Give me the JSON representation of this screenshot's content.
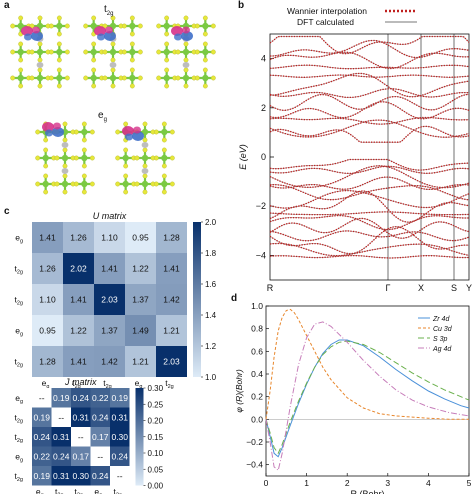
{
  "panels": {
    "a": {
      "letter": "a",
      "t2g_label": "t",
      "t2g_sub": "2g",
      "eg_label": "e",
      "eg_sub": "g"
    },
    "b": {
      "letter": "b"
    },
    "c": {
      "letter": "c"
    },
    "d": {
      "letter": "d"
    }
  },
  "colors": {
    "atom_green": "#7ac943",
    "atom_yellow": "#e6e83a",
    "atom_gray": "#bdbdbd",
    "orbital_magenta": "#d6318a",
    "orbital_blue": "#3f6fc9",
    "band_red": "#c0201f",
    "dft_gray": "#777777",
    "heat_dark": "#08306b",
    "heat_light": "#deebf7"
  },
  "chart_data": [
    {
      "type": "line",
      "panel": "b",
      "ylabel": "E (eV)",
      "ylim": [
        -5,
        5
      ],
      "yticks": [
        -4,
        -2,
        0,
        2,
        4
      ],
      "xticks": [
        "R",
        "Γ",
        "X",
        "S",
        "Y"
      ],
      "legend": [
        "Wannier interpolation",
        "DFT calculated"
      ],
      "legend_placement": "top-right",
      "band_groups": [
        {
          "name": "",
          "range": [
            -4.2,
            -0.1
          ]
        },
        {
          "name": "",
          "range": [
            0.6,
            4.9
          ]
        }
      ]
    },
    {
      "type": "heatmap",
      "panel": "c",
      "title": "U matrix",
      "row_labels": [
        "e",
        "t",
        "t",
        "e",
        "t"
      ],
      "row_subs": [
        "g",
        "2g",
        "2g",
        "g",
        "2g"
      ],
      "col_labels": [
        "e",
        "t",
        "t",
        "e",
        "t"
      ],
      "col_subs": [
        "g",
        "2g",
        "2g",
        "g",
        "2g"
      ],
      "values": [
        [
          "1.41",
          "1.26",
          "1.10",
          "0.95",
          "1.28"
        ],
        [
          "1.26",
          "2.02",
          "1.41",
          "1.22",
          "1.41"
        ],
        [
          "1.10",
          "1.41",
          "2.03",
          "1.37",
          "1.42"
        ],
        [
          "0.95",
          "1.22",
          "1.37",
          "1.49",
          "1.21"
        ],
        [
          "1.28",
          "1.41",
          "1.42",
          "1.21",
          "2.03"
        ]
      ],
      "colorbar": {
        "min": 1.0,
        "max": 2.0,
        "ticks": [
          "1.0",
          "1.2",
          "1.4",
          "1.6",
          "1.8",
          "2.0"
        ]
      }
    },
    {
      "type": "heatmap",
      "panel": "c",
      "title": "J matrix",
      "row_labels": [
        "e",
        "t",
        "t",
        "e",
        "t"
      ],
      "row_subs": [
        "g",
        "2g",
        "2g",
        "g",
        "2g"
      ],
      "col_labels": [
        "e",
        "t",
        "t",
        "e",
        "t"
      ],
      "col_subs": [
        "g",
        "2g",
        "2g",
        "g",
        "2g"
      ],
      "values": [
        [
          "--",
          "0.19",
          "0.24",
          "0.22",
          "0.19"
        ],
        [
          "0.19",
          "--",
          "0.31",
          "0.24",
          "0.31"
        ],
        [
          "0.24",
          "0.31",
          "--",
          "0.17",
          "0.30"
        ],
        [
          "0.22",
          "0.24",
          "0.17",
          "--",
          "0.24"
        ],
        [
          "0.19",
          "0.31",
          "0.30",
          "0.24",
          "--"
        ]
      ],
      "colorbar": {
        "min": 0.0,
        "max": 0.3,
        "ticks": [
          "0.00",
          "0.05",
          "0.10",
          "0.15",
          "0.20",
          "0.25",
          "0.30"
        ]
      }
    },
    {
      "type": "line",
      "panel": "d",
      "xlabel": "R (Bohr)",
      "ylabel": "φ (R)(Bohr)",
      "xlim": [
        0,
        5
      ],
      "ylim": [
        -0.5,
        1.0
      ],
      "xticks": [
        0,
        1,
        2,
        3,
        4,
        5
      ],
      "yticks": [
        -0.4,
        -0.2,
        0.0,
        0.2,
        0.4,
        0.6,
        0.8,
        1.0
      ],
      "legend_placement": "top-right",
      "series": [
        {
          "name": "Zr 4d",
          "color": "#4a90d9",
          "dash": "",
          "x": [
            0,
            0.1,
            0.2,
            0.3,
            0.4,
            0.6,
            0.8,
            1.0,
            1.2,
            1.4,
            1.6,
            1.8,
            2.0,
            2.4,
            2.8,
            3.2,
            3.6,
            4.0,
            4.4,
            4.8,
            5.0
          ],
          "y": [
            0,
            -0.15,
            -0.3,
            -0.33,
            -0.25,
            -0.05,
            0.14,
            0.31,
            0.46,
            0.58,
            0.66,
            0.7,
            0.7,
            0.65,
            0.55,
            0.44,
            0.34,
            0.25,
            0.18,
            0.12,
            0.1
          ]
        },
        {
          "name": "Cu 3d",
          "color": "#e8862b",
          "dash": "3,2",
          "x": [
            0,
            0.1,
            0.2,
            0.3,
            0.4,
            0.5,
            0.6,
            0.7,
            0.8,
            1.0,
            1.2,
            1.4,
            1.6,
            2.0,
            2.4,
            2.8,
            3.2,
            3.6,
            4.0,
            4.5,
            5.0
          ],
          "y": [
            0,
            0.25,
            0.55,
            0.78,
            0.9,
            0.96,
            0.97,
            0.94,
            0.88,
            0.74,
            0.6,
            0.46,
            0.35,
            0.19,
            0.1,
            0.05,
            0.03,
            0.02,
            0.01,
            0.0,
            0.0
          ]
        },
        {
          "name": "S 3p",
          "color": "#6ab04c",
          "dash": "6,3",
          "x": [
            0,
            0.1,
            0.2,
            0.3,
            0.4,
            0.6,
            0.8,
            1.0,
            1.2,
            1.4,
            1.6,
            1.8,
            2.0,
            2.4,
            2.8,
            3.2,
            3.6,
            4.0,
            4.4,
            4.8,
            5.0
          ],
          "y": [
            0,
            -0.12,
            -0.25,
            -0.3,
            -0.22,
            -0.02,
            0.16,
            0.32,
            0.46,
            0.57,
            0.64,
            0.68,
            0.69,
            0.66,
            0.59,
            0.5,
            0.41,
            0.33,
            0.26,
            0.2,
            0.17
          ]
        },
        {
          "name": "Ag 4d",
          "color": "#c77dba",
          "dash": "6,2,1,2",
          "x": [
            0,
            0.1,
            0.2,
            0.3,
            0.4,
            0.6,
            0.8,
            1.0,
            1.2,
            1.4,
            1.6,
            2.0,
            2.4,
            2.8,
            3.2,
            3.6,
            4.0,
            4.5,
            5.0
          ],
          "y": [
            0,
            -0.2,
            -0.42,
            -0.45,
            -0.3,
            0.12,
            0.48,
            0.72,
            0.84,
            0.86,
            0.82,
            0.68,
            0.52,
            0.38,
            0.26,
            0.17,
            0.11,
            0.06,
            0.03
          ]
        }
      ]
    }
  ]
}
